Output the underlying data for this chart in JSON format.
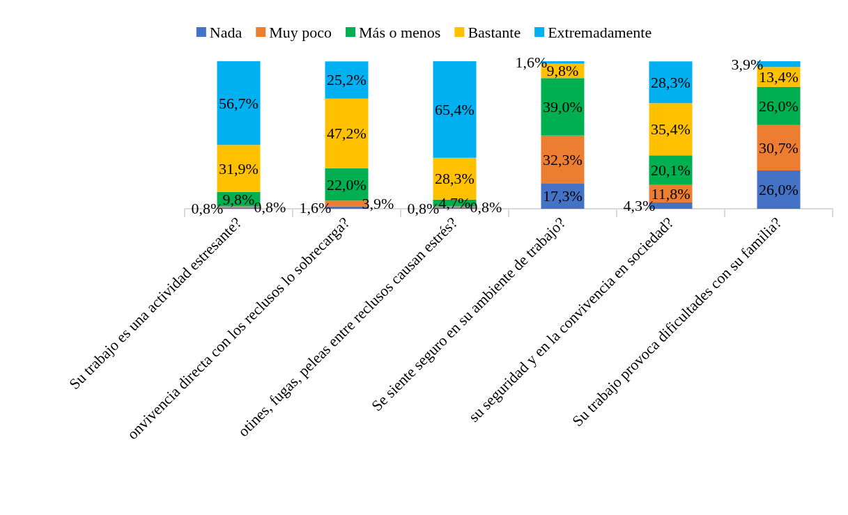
{
  "chart_data": {
    "type": "bar",
    "stacked": true,
    "legend": "top",
    "data_labels": true,
    "categories": [
      "Su trabajo es una actividad estresante?",
      "onvivencia directa con los reclusos lo sobrecarga?",
      "otines, fugas, peleas entre reclusos causan estrés?",
      "Se siente seguro en su ambiente de trabajo?",
      "su seguridad y en la convivencia en sociedad?",
      "Su trabajo provoca dificultades con su familia?"
    ],
    "series": [
      {
        "name": "Nada",
        "color": "#4472c4",
        "values": [
          0.8,
          1.6,
          0.8,
          17.3,
          4.3,
          26.0
        ],
        "value_labels": [
          "0,8%",
          "1,6%",
          "0,8%",
          "17,3%",
          "4,3%",
          "26,0%"
        ]
      },
      {
        "name": "Muy poco",
        "color": "#ed7d31",
        "values": [
          0.8,
          3.9,
          0.8,
          32.3,
          11.8,
          30.7
        ],
        "value_labels": [
          "0,8%",
          "3,9%",
          "0,8%",
          "32,3%",
          "11,8%",
          "30,7%"
        ]
      },
      {
        "name": "Más o menos",
        "color": "#00b050",
        "values": [
          9.8,
          22.0,
          4.7,
          39.0,
          20.1,
          26.0
        ],
        "value_labels": [
          "9,8%",
          "22,0%",
          "4,7%",
          "39,0%",
          "20,1%",
          "26,0%"
        ]
      },
      {
        "name": "Bastante",
        "color": "#ffc000",
        "values": [
          31.9,
          47.2,
          28.3,
          9.8,
          35.4,
          13.4
        ],
        "value_labels": [
          "31,9%",
          "47,2%",
          "28,3%",
          "9,8%",
          "35,4%",
          "13,4%"
        ]
      },
      {
        "name": "Extremadamente",
        "color": "#00b0f0",
        "values": [
          56.7,
          25.2,
          65.4,
          1.6,
          28.3,
          3.9
        ],
        "value_labels": [
          "56,7%",
          "25,2%",
          "65,4%",
          "1,6%",
          "28,3%",
          "3,9%"
        ]
      }
    ]
  }
}
